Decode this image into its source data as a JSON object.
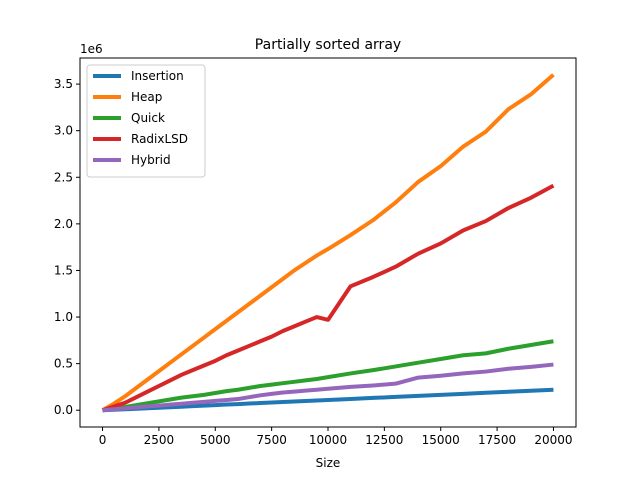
{
  "chart_data": {
    "type": "line",
    "title": "Partially sorted array",
    "xlabel": "Size",
    "ylabel": "",
    "y_offset_label": "1e6",
    "xlim": [
      -1000,
      21000
    ],
    "ylim": [
      -180000,
      3780000
    ],
    "x_ticks": [
      0,
      2500,
      5000,
      7500,
      10000,
      12500,
      15000,
      17500,
      20000
    ],
    "x_tick_labels": [
      "0",
      "2500",
      "5000",
      "7500",
      "10000",
      "12500",
      "15000",
      "17500",
      "20000"
    ],
    "y_ticks": [
      0,
      500000,
      1000000,
      1500000,
      2000000,
      2500000,
      3000000,
      3500000
    ],
    "y_tick_labels": [
      "0.0",
      "0.5",
      "1.0",
      "1.5",
      "2.0",
      "2.5",
      "3.0",
      "3.5"
    ],
    "grid": false,
    "legend_position": "upper-left",
    "x": [
      0,
      500,
      1000,
      1500,
      2000,
      2500,
      3000,
      3500,
      4000,
      4500,
      5000,
      5500,
      6000,
      6500,
      7000,
      7500,
      8000,
      8500,
      9000,
      9500,
      10000,
      11000,
      12000,
      13000,
      14000,
      15000,
      16000,
      17000,
      18000,
      19000,
      20000
    ],
    "series": [
      {
        "name": "Insertion",
        "color": "#1f77b4",
        "values": [
          0,
          5000,
          10000,
          16000,
          21000,
          27000,
          32000,
          38000,
          44000,
          50000,
          55000,
          61000,
          66000,
          72000,
          77000,
          83000,
          88000,
          94000,
          99000,
          105000,
          110000,
          121000,
          132000,
          143000,
          154000,
          165000,
          176000,
          187000,
          198000,
          209000,
          220000
        ]
      },
      {
        "name": "Heap",
        "color": "#ff7f0e",
        "values": [
          0,
          70000,
          150000,
          240000,
          330000,
          420000,
          510000,
          600000,
          690000,
          780000,
          870000,
          960000,
          1050000,
          1140000,
          1230000,
          1320000,
          1410000,
          1500000,
          1580000,
          1660000,
          1730000,
          1880000,
          2040000,
          2230000,
          2450000,
          2620000,
          2830000,
          2990000,
          3230000,
          3390000,
          3600000
        ]
      },
      {
        "name": "Quick",
        "color": "#2ca02c",
        "values": [
          0,
          15000,
          35000,
          55000,
          75000,
          95000,
          115000,
          135000,
          150000,
          165000,
          185000,
          205000,
          220000,
          240000,
          260000,
          275000,
          290000,
          305000,
          320000,
          335000,
          355000,
          395000,
          430000,
          470000,
          510000,
          550000,
          590000,
          610000,
          660000,
          700000,
          740000
        ]
      },
      {
        "name": "RadixLSD",
        "color": "#d62728",
        "values": [
          0,
          40000,
          80000,
          140000,
          200000,
          260000,
          320000,
          380000,
          430000,
          480000,
          530000,
          590000,
          640000,
          690000,
          740000,
          790000,
          850000,
          900000,
          950000,
          1000000,
          970000,
          1330000,
          1430000,
          1540000,
          1680000,
          1790000,
          1930000,
          2030000,
          2170000,
          2280000,
          2410000
        ]
      },
      {
        "name": "Hybrid",
        "color": "#9467bd",
        "values": [
          0,
          10000,
          20000,
          30000,
          40000,
          50000,
          60000,
          70000,
          80000,
          90000,
          100000,
          110000,
          120000,
          140000,
          160000,
          175000,
          190000,
          200000,
          210000,
          220000,
          230000,
          250000,
          265000,
          285000,
          350000,
          370000,
          395000,
          415000,
          445000,
          465000,
          490000
        ]
      }
    ]
  }
}
